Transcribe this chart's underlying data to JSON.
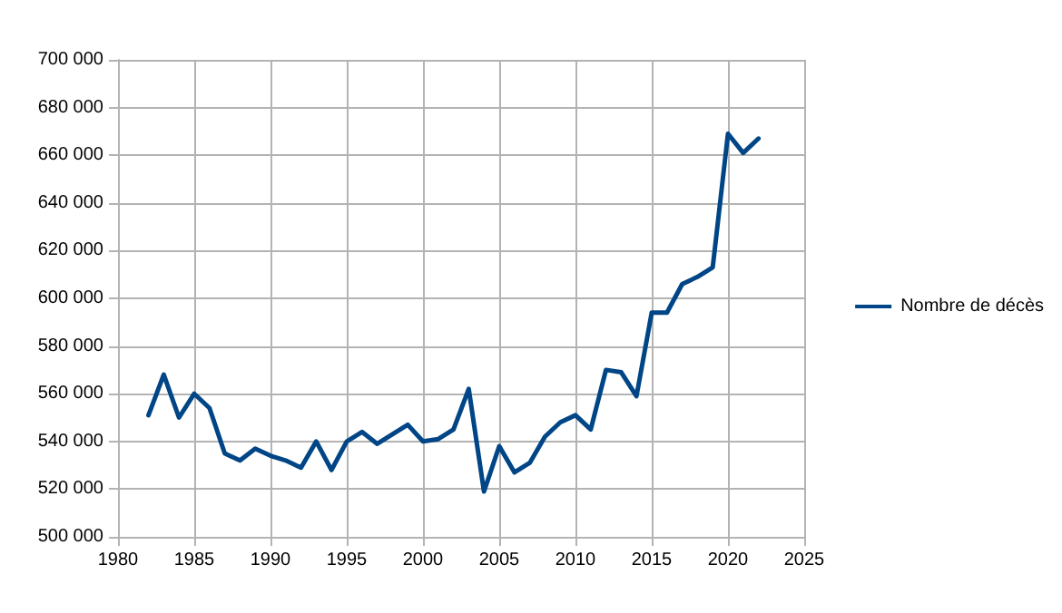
{
  "chart_data": {
    "type": "line",
    "x": [
      1982,
      1983,
      1984,
      1985,
      1986,
      1987,
      1988,
      1989,
      1990,
      1991,
      1992,
      1993,
      1994,
      1995,
      1996,
      1997,
      1998,
      1999,
      2000,
      2001,
      2002,
      2003,
      2004,
      2005,
      2006,
      2007,
      2008,
      2009,
      2010,
      2011,
      2012,
      2013,
      2014,
      2015,
      2016,
      2017,
      2018,
      2019,
      2020,
      2021,
      2022
    ],
    "series": [
      {
        "name": "Nombre de décès",
        "color": "#004586",
        "values": [
          551000,
          568000,
          550000,
          560000,
          554000,
          535000,
          532000,
          537000,
          534000,
          532000,
          529000,
          540000,
          528000,
          540000,
          544000,
          539000,
          543000,
          547000,
          540000,
          541000,
          545000,
          562000,
          519000,
          538000,
          527000,
          531000,
          542000,
          548000,
          551000,
          545000,
          570000,
          569000,
          559000,
          594000,
          594000,
          606000,
          609000,
          613000,
          669000,
          661000,
          667000
        ]
      }
    ],
    "xlim": [
      1980,
      2025
    ],
    "xticks": [
      1980,
      1985,
      1990,
      1995,
      2000,
      2005,
      2010,
      2015,
      2020,
      2025
    ],
    "ylim": [
      500000,
      700000
    ],
    "yticks": [
      {
        "value": 500000,
        "label": "500 000"
      },
      {
        "value": 520000,
        "label": "520 000"
      },
      {
        "value": 540000,
        "label": "540 000"
      },
      {
        "value": 560000,
        "label": "560 000"
      },
      {
        "value": 580000,
        "label": "580 000"
      },
      {
        "value": 600000,
        "label": "600 000"
      },
      {
        "value": 620000,
        "label": "620 000"
      },
      {
        "value": 640000,
        "label": "640 000"
      },
      {
        "value": 660000,
        "label": "660 000"
      },
      {
        "value": 680000,
        "label": "680 000"
      },
      {
        "value": 700000,
        "label": "700 000"
      }
    ],
    "grid": true,
    "legend": "right",
    "marker": "none",
    "line_style": "solid"
  }
}
